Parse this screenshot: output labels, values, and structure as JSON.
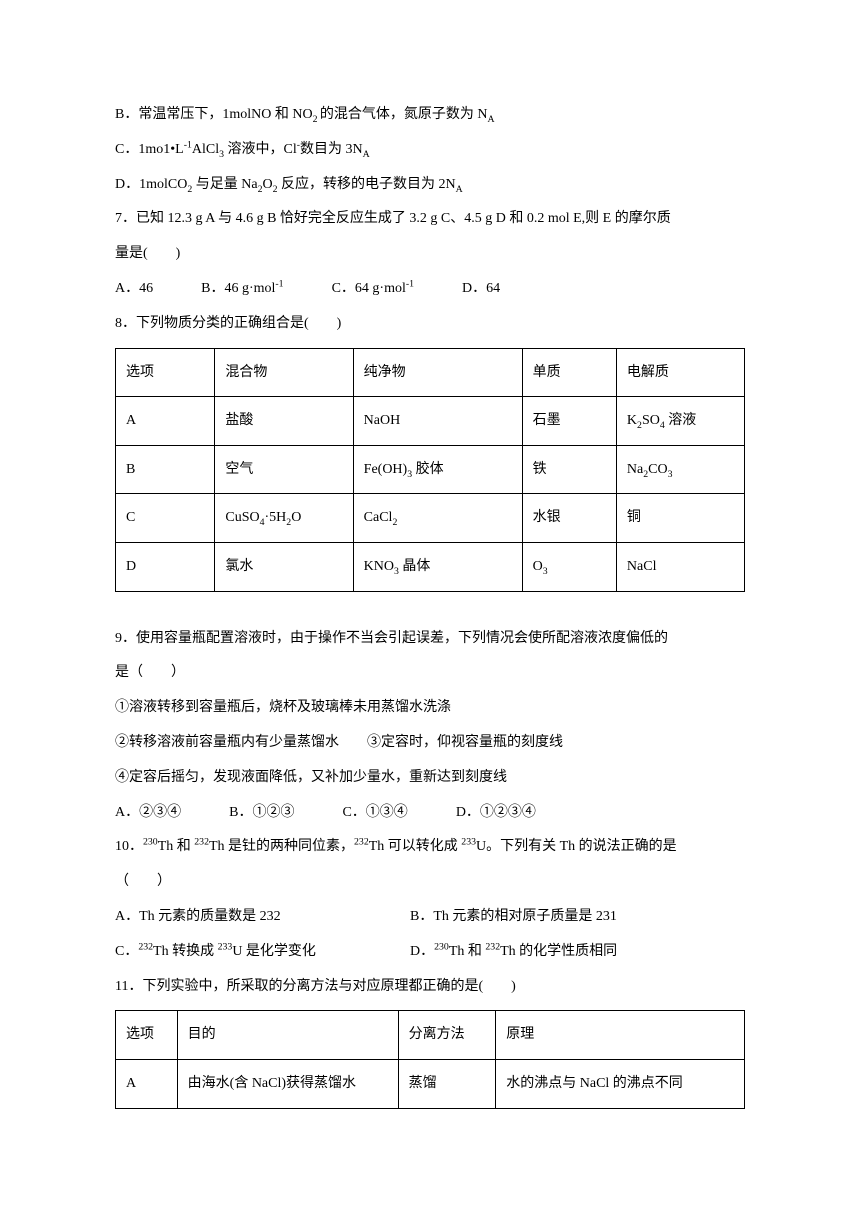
{
  "q6": {
    "optB": "B．常温常压下，1molNO 和 NO₂ 的混合气体，氮原子数为 Nₐ",
    "optC": "C．1mo1•L⁻¹AlCl₃ 溶液中，Cl⁻数目为 3Nₐ",
    "optD": "D．1molCO₂ 与足量 Na₂O₂ 反应，转移的电子数目为 2Nₐ"
  },
  "q7": {
    "stem1": "7．已知 12.3 g A 与 4.6 g B 恰好完全反应生成了 3.2 g C、4.5 g D 和 0.2 mol E,则 E 的摩尔质",
    "stem2": "量是(　　)",
    "optA": "A．46",
    "optB": "B．46 g·mol⁻¹",
    "optC": "C．64 g·mol⁻¹",
    "optD": "D．64"
  },
  "q8": {
    "stem": "8．下列物质分类的正确组合是(　　)",
    "headers": [
      "选项",
      "混合物",
      "纯净物",
      "单质",
      "电解质"
    ],
    "rows": [
      [
        "A",
        "盐酸",
        "NaOH",
        "石墨",
        "K₂SO₄ 溶液"
      ],
      [
        "B",
        "空气",
        "Fe(OH)₃ 胶体",
        "铁",
        "Na₂CO₃"
      ],
      [
        "C",
        "CuSO₄·5H₂O",
        "CaCl₂",
        "水银",
        "铜"
      ],
      [
        "D",
        "氯水",
        "KNO₃ 晶体",
        "O₃",
        "NaCl"
      ]
    ]
  },
  "q9": {
    "stem1": "9．使用容量瓶配置溶液时，由于操作不当会引起误差，下列情况会使所配溶液浓度偏低的",
    "stem2": "是（　　）",
    "item1": "①溶液转移到容量瓶后，烧杯及玻璃棒未用蒸馏水洗涤",
    "item2": "②转移溶液前容量瓶内有少量蒸馏水　　③定容时，仰视容量瓶的刻度线",
    "item3": "④定容后摇匀，发现液面降低，又补加少量水，重新达到刻度线",
    "optA": "A．②③④",
    "optB": "B．①②③",
    "optC": "C．①③④",
    "optD": "D．①②③④"
  },
  "q10": {
    "stem1": "10．²³⁰Th 和 ²³²Th 是钍的两种同位素，²³²Th 可以转化成 ²³³U。下列有关 Th 的说法正确的是",
    "stem2": "（　　）",
    "optA": "A．Th 元素的质量数是 232",
    "optB": "B．Th 元素的相对原子质量是 231",
    "optC": "C．²³²Th 转换成 ²³³U 是化学变化",
    "optD": "D．²³⁰Th 和 ²³²Th 的化学性质相同"
  },
  "q11": {
    "stem": "11．下列实验中，所采取的分离方法与对应原理都正确的是(　　)",
    "headers": [
      "选项",
      "目的",
      "分离方法",
      "原理"
    ],
    "rows": [
      [
        "A",
        "由海水(含 NaCl)获得蒸馏水",
        "蒸馏",
        "水的沸点与 NaCl 的沸点不同"
      ]
    ]
  }
}
